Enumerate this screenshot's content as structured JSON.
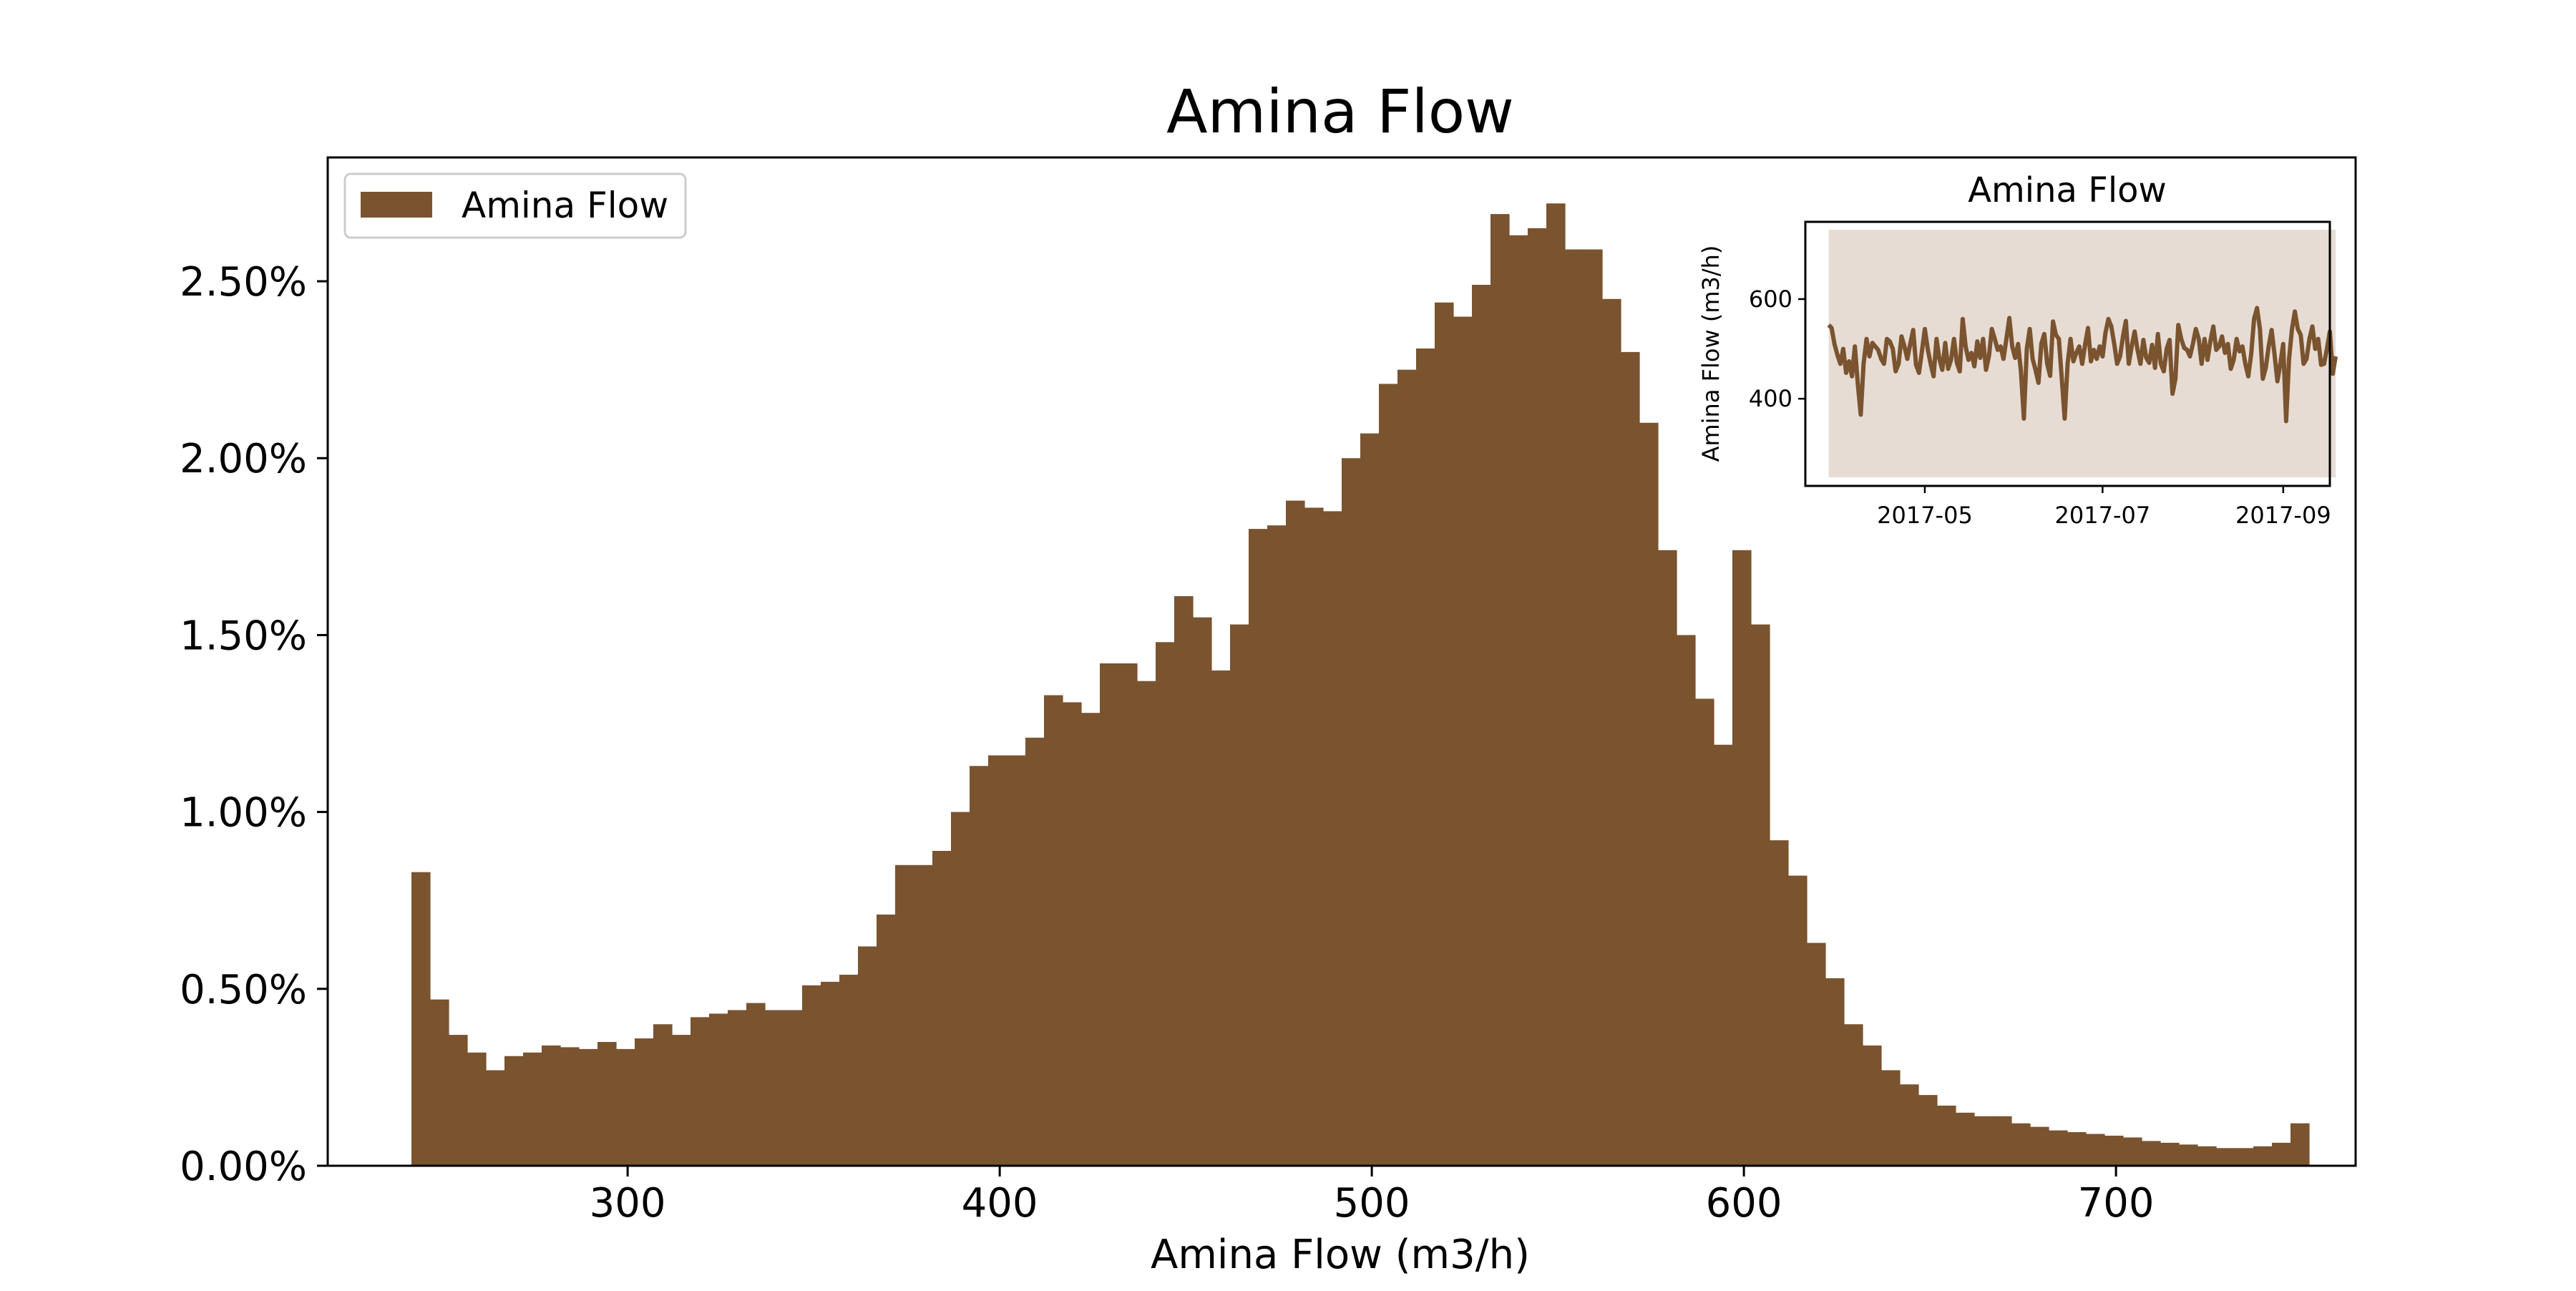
{
  "chart_data": [
    {
      "type": "histogram",
      "title": "Amina Flow",
      "xlabel": "Amina Flow (m3/h)",
      "ylabel": "",
      "xlim": [
        219.4,
        764.4
      ],
      "ylim": [
        0,
        0.0285
      ],
      "xticks": [
        300,
        400,
        500,
        600,
        700
      ],
      "xtick_labels": [
        "300",
        "400",
        "500",
        "600",
        "700"
      ],
      "yticks": [
        0,
        0.005,
        0.01,
        0.015,
        0.02,
        0.025
      ],
      "ytick_labels": [
        "0.00%",
        "0.50%",
        "1.00%",
        "1.50%",
        "2.00%",
        "2.50%"
      ],
      "y_format": "percent",
      "legend": {
        "position": "top-left",
        "label": "Amina Flow"
      },
      "color": "#7a532f",
      "bin_start": 241.9,
      "bin_width": 5.0,
      "series": [
        {
          "name": "Amina Flow",
          "values": [
            0.0083,
            0.0047,
            0.0037,
            0.0032,
            0.0027,
            0.0031,
            0.0032,
            0.0034,
            0.00335,
            0.0033,
            0.0035,
            0.0033,
            0.0036,
            0.004,
            0.0037,
            0.0042,
            0.0043,
            0.0044,
            0.0046,
            0.0044,
            0.0044,
            0.0051,
            0.0052,
            0.0054,
            0.0062,
            0.0071,
            0.0085,
            0.0085,
            0.0089,
            0.01,
            0.0113,
            0.0116,
            0.0116,
            0.0121,
            0.0133,
            0.0131,
            0.0128,
            0.0142,
            0.0142,
            0.0137,
            0.0148,
            0.0161,
            0.0155,
            0.014,
            0.0153,
            0.018,
            0.0181,
            0.0188,
            0.0186,
            0.0185,
            0.02,
            0.0207,
            0.0221,
            0.0225,
            0.0231,
            0.0244,
            0.024,
            0.0249,
            0.0269,
            0.0263,
            0.0265,
            0.0272,
            0.0259,
            0.0259,
            0.0245,
            0.023,
            0.021,
            0.0174,
            0.015,
            0.0132,
            0.0119,
            0.0174,
            0.0153,
            0.0092,
            0.0082,
            0.0063,
            0.0053,
            0.004,
            0.0034,
            0.0027,
            0.0023,
            0.002,
            0.0017,
            0.0015,
            0.0014,
            0.0014,
            0.0012,
            0.0011,
            0.001,
            0.00095,
            0.0009,
            0.00085,
            0.0008,
            0.0007,
            0.00065,
            0.0006,
            0.00055,
            0.0005,
            0.0005,
            0.00055,
            0.00065,
            0.0012
          ]
        }
      ]
    },
    {
      "type": "line",
      "title": "Amina Flow",
      "xlabel": "",
      "ylabel": "Amina Flow (m3/h)",
      "xlim": [
        -8,
        172
      ],
      "ylim": [
        225,
        755
      ],
      "x_origin": "2017-03-29",
      "xticks": [
        33,
        94,
        156
      ],
      "xtick_labels": [
        "2017-05",
        "2017-07",
        "2017-09"
      ],
      "yticks": [
        400,
        600
      ],
      "ytick_labels": [
        "400",
        "600"
      ],
      "color": "#7a532f",
      "band_color": "#e6dcd4",
      "band_lower": 242,
      "band_upper": 739,
      "series": [
        {
          "name": "Amina Flow",
          "values": [
            548,
            542,
            510,
            488,
            470,
            500,
            452,
            475,
            445,
            505,
            430,
            368,
            470,
            520,
            485,
            512,
            505,
            498,
            480,
            470,
            520,
            515,
            500,
            455,
            470,
            525,
            505,
            480,
            510,
            538,
            468,
            452,
            495,
            540,
            500,
            470,
            445,
            520,
            480,
            458,
            512,
            460,
            478,
            520,
            472,
            455,
            560,
            505,
            478,
            492,
            465,
            515,
            482,
            520,
            458,
            486,
            540,
            520,
            498,
            505,
            480,
            520,
            562,
            505,
            482,
            510,
            455,
            360,
            500,
            540,
            480,
            458,
            432,
            510,
            530,
            470,
            446,
            555,
            528,
            520,
            440,
            360,
            470,
            520,
            475,
            492,
            505,
            470,
            508,
            542,
            475,
            498,
            480,
            505,
            485,
            532,
            560,
            545,
            510,
            470,
            485,
            525,
            556,
            470,
            505,
            535,
            498,
            470,
            518,
            482,
            472,
            508,
            462,
            530,
            470,
            455,
            500,
            518,
            410,
            440,
            548,
            520,
            502,
            498,
            485,
            510,
            540,
            520,
            470,
            520,
            478,
            515,
            545,
            498,
            505,
            525,
            492,
            510,
            460,
            478,
            520,
            495,
            505,
            470,
            445,
            490,
            560,
            582,
            540,
            440,
            462,
            505,
            538,
            490,
            435,
            470,
            510,
            355,
            480,
            540,
            575,
            540,
            528,
            470,
            480,
            520,
            545,
            500,
            520,
            468,
            470,
            500,
            535,
            450,
            485
          ]
        }
      ]
    }
  ]
}
